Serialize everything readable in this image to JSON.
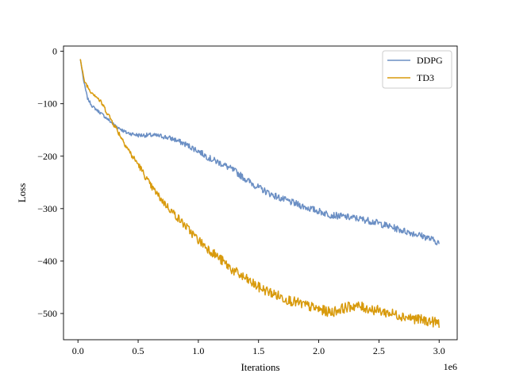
{
  "chart_data": {
    "type": "line",
    "title": "",
    "xlabel": "Iterations",
    "ylabel": "Loss",
    "x_multiplier_label": "1e6",
    "xlim": [
      -0.12,
      3.15
    ],
    "ylim": [
      -550,
      10
    ],
    "x_ticks": [
      0.0,
      0.5,
      1.0,
      1.5,
      2.0,
      2.5,
      3.0
    ],
    "x_tick_labels": [
      "0.0",
      "0.5",
      "1.0",
      "1.5",
      "2.0",
      "2.5",
      "3.0"
    ],
    "y_ticks": [
      0,
      -100,
      -200,
      -300,
      -400,
      -500
    ],
    "y_tick_labels": [
      "0",
      "−100",
      "−200",
      "−300",
      "−400",
      "−500"
    ],
    "grid": false,
    "legend_position": "top-right",
    "series": [
      {
        "name": "DDPG",
        "color": "#6b8fc4",
        "x": [
          0.02,
          0.05,
          0.08,
          0.12,
          0.2,
          0.3,
          0.4,
          0.5,
          0.6,
          0.7,
          0.8,
          0.9,
          1.0,
          1.1,
          1.2,
          1.3,
          1.4,
          1.5,
          1.6,
          1.7,
          1.8,
          1.9,
          2.0,
          2.1,
          2.2,
          2.3,
          2.4,
          2.5,
          2.6,
          2.7,
          2.8,
          2.9,
          3.0
        ],
        "y": [
          -15,
          -60,
          -90,
          -105,
          -120,
          -140,
          -155,
          -160,
          -160,
          -162,
          -168,
          -178,
          -190,
          -205,
          -215,
          -228,
          -245,
          -260,
          -272,
          -282,
          -290,
          -298,
          -305,
          -312,
          -315,
          -318,
          -322,
          -328,
          -335,
          -342,
          -348,
          -355,
          -365
        ]
      },
      {
        "name": "TD3",
        "color": "#d89a0c",
        "x": [
          0.02,
          0.05,
          0.1,
          0.15,
          0.2,
          0.25,
          0.3,
          0.35,
          0.4,
          0.45,
          0.5,
          0.55,
          0.6,
          0.7,
          0.8,
          0.9,
          1.0,
          1.1,
          1.2,
          1.3,
          1.4,
          1.5,
          1.6,
          1.7,
          1.8,
          1.9,
          2.0,
          2.1,
          2.2,
          2.3,
          2.4,
          2.5,
          2.6,
          2.7,
          2.8,
          2.9,
          3.0
        ],
        "y": [
          -15,
          -55,
          -75,
          -85,
          -100,
          -120,
          -140,
          -160,
          -180,
          -200,
          -215,
          -235,
          -255,
          -285,
          -310,
          -335,
          -360,
          -380,
          -400,
          -420,
          -435,
          -450,
          -460,
          -470,
          -478,
          -485,
          -492,
          -498,
          -490,
          -485,
          -490,
          -495,
          -500,
          -505,
          -510,
          -514,
          -518
        ]
      }
    ]
  }
}
